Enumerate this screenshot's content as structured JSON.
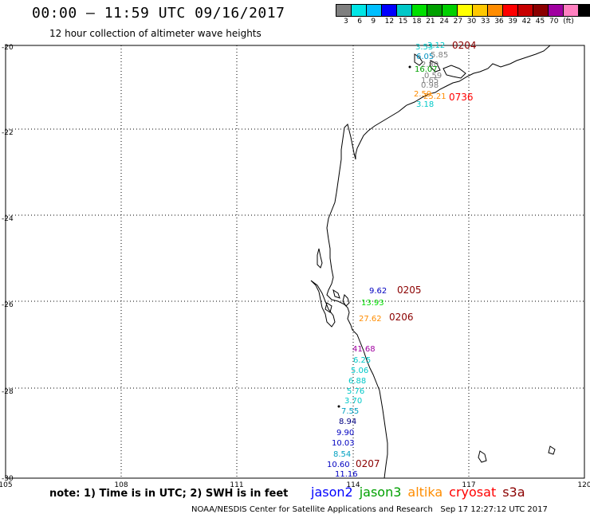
{
  "header": {
    "title": "00:00 – 11:59 UTC 09/16/2017",
    "subtitle": "12 hour collection of altimeter wave heights"
  },
  "legend": {
    "colors": [
      "#7f7f7f",
      "#00e5e5",
      "#00bfff",
      "#0000ff",
      "#00c8c8",
      "#00e000",
      "#00a000",
      "#00d000",
      "#ffff00",
      "#ffc800",
      "#ff8c00",
      "#ff0000",
      "#c80000",
      "#8b0000",
      "#a000a0",
      "#ff80c0",
      "#000000"
    ],
    "labels": [
      "3",
      "6",
      "9",
      "12",
      "15",
      "18",
      "21",
      "24",
      "27",
      "30",
      "33",
      "36",
      "39",
      "42",
      "45",
      "70",
      "(ft)"
    ]
  },
  "map": {
    "lat_labels": [
      "-20",
      "-22",
      "-24",
      "-26",
      "-28",
      "-30"
    ],
    "lon_labels": [
      "105",
      "108",
      "111",
      "114",
      "117",
      "120"
    ],
    "readings": [
      {
        "text": "3.53",
        "color": "#00c8c8"
      },
      {
        "text": "3.12",
        "color": "#00c8c8"
      },
      {
        "text": "0204",
        "color": "#8b0000"
      },
      {
        "text": "6.05",
        "color": "#0090c0"
      },
      {
        "text": "5.85",
        "color": "#7f7f7f"
      },
      {
        "text": "2.80",
        "color": "#7f7f7f"
      },
      {
        "text": "16.07",
        "color": "#00a000"
      },
      {
        "text": "0.59",
        "color": "#7f7f7f"
      },
      {
        "text": "1.65",
        "color": "#7f7f7f"
      },
      {
        "text": "0.98",
        "color": "#7f7f7f"
      },
      {
        "text": "2.59",
        "color": "#ff8c00"
      },
      {
        "text": "25.21",
        "color": "#ff8c00"
      },
      {
        "text": "0736",
        "color": "#ff0000"
      },
      {
        "text": "3.18",
        "color": "#00c8c8"
      },
      {
        "text": "9.62",
        "color": "#0000c0"
      },
      {
        "text": "0205",
        "color": "#8b0000"
      },
      {
        "text": "13.93",
        "color": "#00e000"
      },
      {
        "text": "27.62",
        "color": "#ff8c00"
      },
      {
        "text": "0206",
        "color": "#8b0000"
      },
      {
        "text": "41.68",
        "color": "#a000a0"
      },
      {
        "text": "6.25",
        "color": "#00c8c8"
      },
      {
        "text": "5.06",
        "color": "#00c8c8"
      },
      {
        "text": "6.88",
        "color": "#00c8c8"
      },
      {
        "text": "5.76",
        "color": "#00c8c8"
      },
      {
        "text": "3.70",
        "color": "#00c8c8"
      },
      {
        "text": "7.55",
        "color": "#00a0c0"
      },
      {
        "text": "8.94",
        "color": "#000080"
      },
      {
        "text": "9.90",
        "color": "#0000c0"
      },
      {
        "text": "10.03",
        "color": "#0000c0"
      },
      {
        "text": "8.54",
        "color": "#00a0c0"
      },
      {
        "text": "10.60",
        "color": "#0000c0"
      },
      {
        "text": "0207",
        "color": "#8b0000"
      },
      {
        "text": "11.16",
        "color": "#0000c0"
      }
    ]
  },
  "footer": {
    "note": "note:  1) Time is in UTC;  2) SWH is in feet",
    "satellites": [
      {
        "name": "jason2",
        "color": "#0000ff"
      },
      {
        "name": "jason3",
        "color": "#00a000"
      },
      {
        "name": "altika",
        "color": "#ff8c00"
      },
      {
        "name": "cryosat",
        "color": "#ff0000"
      },
      {
        "name": "s3a",
        "color": "#8b0000"
      }
    ],
    "credit": "NOAA/NESDIS Center for Satellite Applications and Research",
    "timestamp": "Sep 17 12:27:12 UTC 2017"
  }
}
